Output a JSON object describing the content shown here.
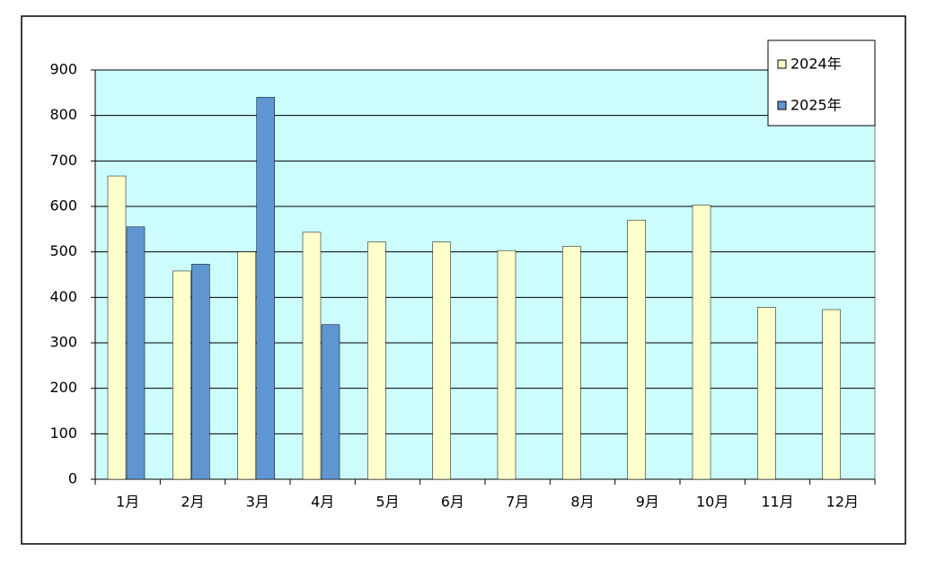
{
  "chart_data": {
    "type": "bar",
    "categories": [
      "1月",
      "2月",
      "3月",
      "4月",
      "5月",
      "6月",
      "7月",
      "8月",
      "9月",
      "10月",
      "11月",
      "12月"
    ],
    "series": [
      {
        "name": "2024年",
        "color": "#ffffcc",
        "values": [
          667,
          458,
          500,
          543,
          522,
          522,
          503,
          512,
          570,
          603,
          378,
          373
        ]
      },
      {
        "name": "2025年",
        "color": "#5f96d2",
        "values": [
          555,
          473,
          840,
          340,
          null,
          null,
          null,
          null,
          null,
          null,
          null,
          null
        ]
      }
    ],
    "ylim": [
      0,
      900
    ],
    "yticks": [
      0,
      100,
      200,
      300,
      400,
      500,
      600,
      700,
      800,
      900
    ],
    "grid": true,
    "legend": "top-right"
  }
}
